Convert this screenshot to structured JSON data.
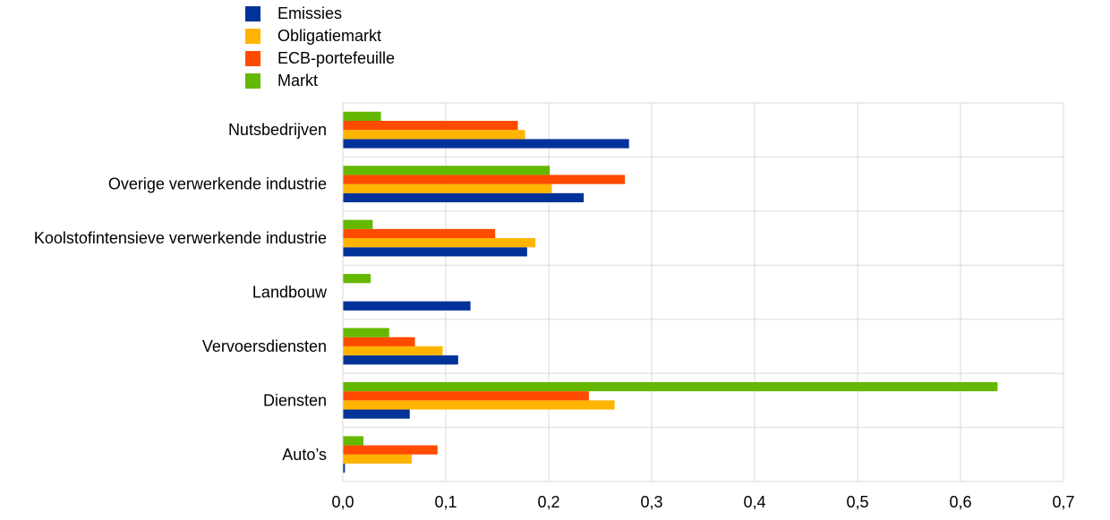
{
  "chart_data": {
    "type": "bar",
    "orientation": "horizontal",
    "categories": [
      "Nutsbedrijven",
      "Overige verwerkende industrie",
      "Koolstofintensieve verwerkende industrie",
      "Landbouw",
      "Vervoersdiensten",
      "Diensten",
      "Auto’s"
    ],
    "series": [
      {
        "name": "Emissies",
        "color": "#003299",
        "values": [
          0.278,
          0.234,
          0.179,
          0.124,
          0.112,
          0.065,
          0.002
        ]
      },
      {
        "name": "Obligatiemarkt",
        "color": "#FFB400",
        "values": [
          0.177,
          0.203,
          0.187,
          0.0,
          0.097,
          0.264,
          0.067
        ]
      },
      {
        "name": "ECB-portefeuille",
        "color": "#FF4B00",
        "values": [
          0.17,
          0.274,
          0.148,
          0.0,
          0.07,
          0.239,
          0.092
        ]
      },
      {
        "name": "Markt",
        "color": "#65B800",
        "values": [
          0.037,
          0.201,
          0.029,
          0.027,
          0.045,
          0.636,
          0.02
        ]
      }
    ],
    "xlim": [
      0,
      0.7
    ],
    "ticks": [
      0.0,
      0.1,
      0.2,
      0.3,
      0.4,
      0.5,
      0.6,
      0.7
    ],
    "tick_labels": [
      "0,0",
      "0,1",
      "0,2",
      "0,3",
      "0,4",
      "0,5",
      "0,6",
      "0,7"
    ],
    "grid": true,
    "legend_position": "top-left",
    "title": "",
    "xlabel": "",
    "ylabel": ""
  }
}
